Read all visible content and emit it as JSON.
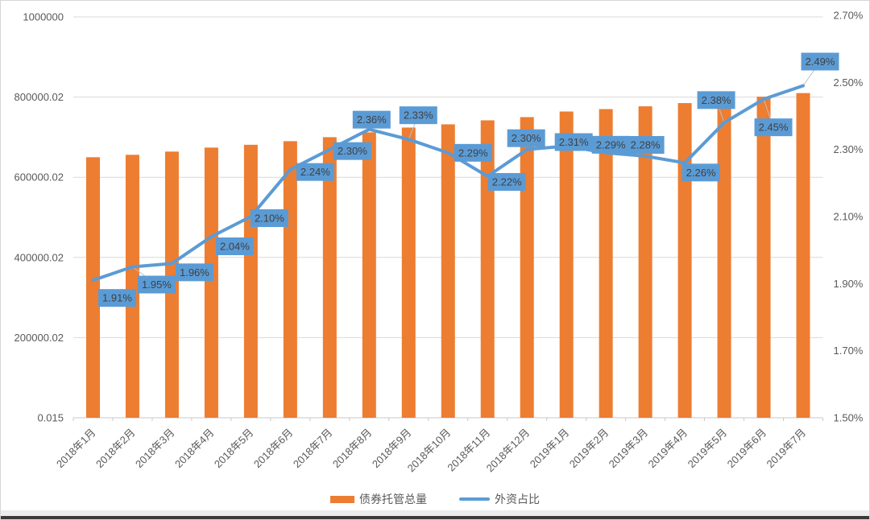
{
  "chart_data": {
    "type": "bar",
    "subtype": "combo-bar-line-dual-axis",
    "title": "",
    "categories": [
      "2018年1月",
      "2018年2月",
      "2018年3月",
      "2018年4月",
      "2018年5月",
      "2018年6月",
      "2018年7月",
      "2018年8月",
      "2018年9月",
      "2018年10月",
      "2018年11月",
      "2018年12月",
      "2019年1月",
      "2019年2月",
      "2019年3月",
      "2019年4月",
      "2019年5月",
      "2019年6月",
      "2019年7月"
    ],
    "series": [
      {
        "name": "债券托管总量",
        "type": "bar",
        "axis": "left",
        "color": "#ED7D31",
        "values": [
          650000,
          656000,
          664000,
          674000,
          681000,
          690000,
          700000,
          712000,
          724000,
          732000,
          742000,
          750000,
          764000,
          770000,
          777000,
          785000,
          795000,
          801000,
          810000
        ]
      },
      {
        "name": "外资占比",
        "type": "line",
        "axis": "right",
        "color": "#5B9BD5",
        "values": [
          1.91,
          1.95,
          1.96,
          2.04,
          2.1,
          2.24,
          2.3,
          2.36,
          2.33,
          2.29,
          2.22,
          2.3,
          2.31,
          2.29,
          2.28,
          2.26,
          2.38,
          2.45,
          2.49
        ],
        "labels": [
          "1.91%",
          "1.95%",
          "1.96%",
          "2.04%",
          "2.10%",
          "2.24%",
          "2.30%",
          "2.36%",
          "2.33%",
          "2.29%",
          "2.22%",
          "2.30%",
          "2.31%",
          "2.29%",
          "2.28%",
          "2.26%",
          "2.38%",
          "2.45%",
          "2.49%"
        ],
        "label_offsets": [
          {
            "dx": 30,
            "dy": 22,
            "leader": false
          },
          {
            "dx": 30,
            "dy": 22,
            "leader": true
          },
          {
            "dx": 28,
            "dy": 11,
            "leader": false
          },
          {
            "dx": 29,
            "dy": 12,
            "leader": false
          },
          {
            "dx": 23,
            "dy": 2,
            "leader": false
          },
          {
            "dx": 31,
            "dy": 3,
            "leader": false
          },
          {
            "dx": 28,
            "dy": 2,
            "leader": false
          },
          {
            "dx": 3,
            "dy": -12,
            "leader": false
          },
          {
            "dx": 12,
            "dy": -30,
            "leader": true
          },
          {
            "dx": 31,
            "dy": 0,
            "leader": false
          },
          {
            "dx": 24,
            "dy": 7,
            "leader": false
          },
          {
            "dx": -1,
            "dy": -14,
            "leader": false
          },
          {
            "dx": 9,
            "dy": -5,
            "leader": false
          },
          {
            "dx": 6,
            "dy": -10,
            "leader": false
          },
          {
            "dx": 0,
            "dy": -14,
            "leader": false
          },
          {
            "dx": 20,
            "dy": 12,
            "leader": false
          },
          {
            "dx": -10,
            "dy": -28,
            "leader": true
          },
          {
            "dx": 12,
            "dy": 35,
            "leader": true
          },
          {
            "dx": 21,
            "dy": -30,
            "leader": true
          }
        ]
      }
    ],
    "left_axis": {
      "tick_labels": [
        "1000000",
        "800000.02",
        "600000.02",
        "400000.02",
        "200000.02",
        "0.015"
      ],
      "tick_values": [
        1000000,
        800000,
        600000,
        400000,
        200000,
        0
      ],
      "min": 0,
      "max": 1000000
    },
    "right_axis": {
      "tick_labels": [
        "2.70%",
        "2.50%",
        "2.30%",
        "2.10%",
        "1.90%",
        "1.70%",
        "1.50%"
      ],
      "min": 1.5,
      "max": 2.7
    },
    "grid": true,
    "legend_position": "bottom-center",
    "colors": {
      "bar": "#ED7D31",
      "line": "#5B9BD5",
      "label_box": "#5B9BD5",
      "label_text": "#404040",
      "grid": "#D9D9D9",
      "axis_line": "#C9C9C9",
      "axis_text": "#595959",
      "leader": "#BFBFBF"
    }
  }
}
